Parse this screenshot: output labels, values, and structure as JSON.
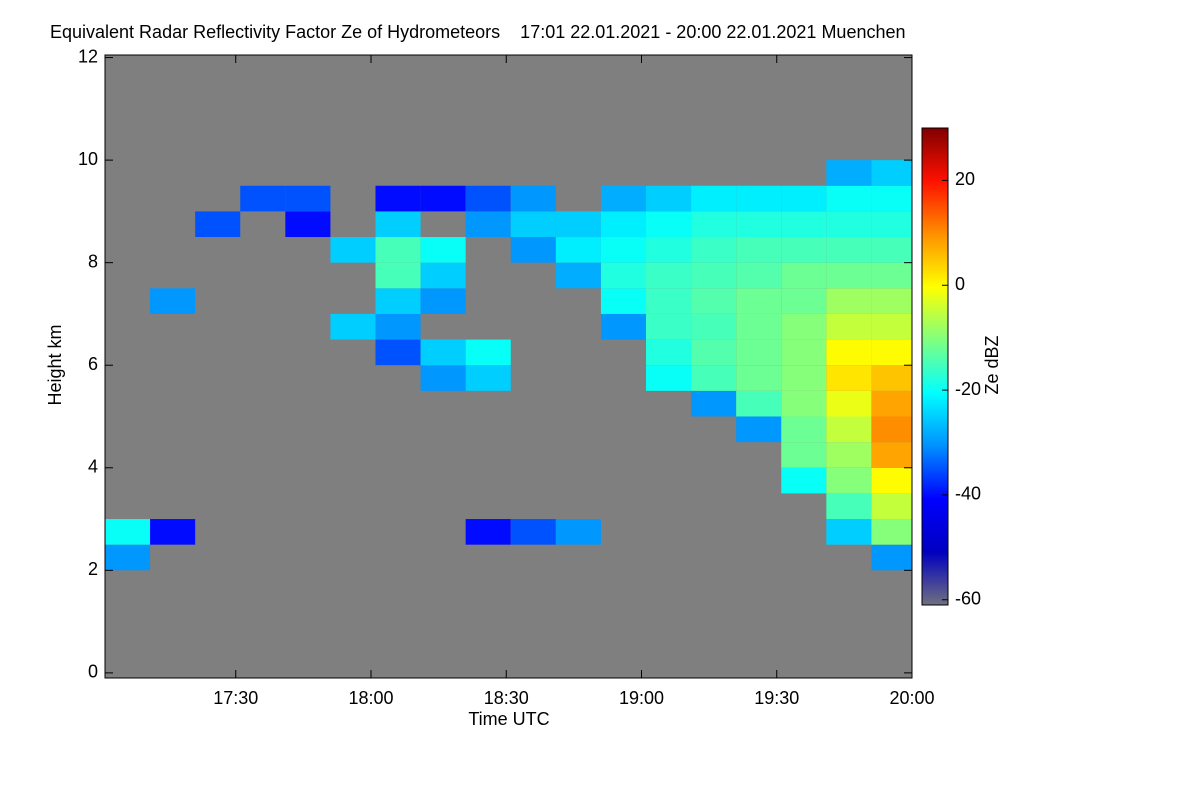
{
  "chart_data": {
    "type": "heatmap",
    "title": "Equivalent Radar Reflectivity Factor Ze of Hydrometeors    17:01 22.01.2021 - 20:00 22.01.2021 Muenchen",
    "x_label": "Time UTC",
    "y_label": "Height km",
    "colorbar_label": "Ze dBZ",
    "xlim": [
      1021,
      1200
    ],
    "xticks": [
      {
        "value": 1050,
        "label": "17:30"
      },
      {
        "value": 1080,
        "label": "18:00"
      },
      {
        "value": 1110,
        "label": "18:30"
      },
      {
        "value": 1140,
        "label": "19:00"
      },
      {
        "value": 1170,
        "label": "19:30"
      },
      {
        "value": 1200,
        "label": "20:00"
      }
    ],
    "ylim": [
      -0.1,
      12.05
    ],
    "yticks": [
      0,
      2,
      4,
      6,
      8,
      10,
      12
    ],
    "clim": [
      -61,
      30
    ],
    "cticks": [
      -60,
      -40,
      -20,
      0,
      20
    ],
    "background_color": "#7f7f7f",
    "colorscale": [
      "#707080",
      "#0000c0",
      "#0000ff",
      "#0090ff",
      "#00ffff",
      "#80ff80",
      "#ffff00",
      "#ff9000",
      "#ff1000",
      "#800000"
    ],
    "x": [
      1026,
      1036,
      1046,
      1056,
      1066,
      1076,
      1086,
      1096,
      1106,
      1116,
      1126,
      1136,
      1146,
      1156,
      1166,
      1176,
      1186,
      1196
    ],
    "y": [
      2.25,
      2.75,
      3.25,
      3.75,
      4.25,
      4.75,
      5.25,
      5.75,
      6.25,
      6.75,
      7.25,
      7.75,
      8.25,
      8.75,
      9.25,
      9.75
    ],
    "z": [
      [
        -30,
        null,
        null,
        null,
        null,
        null,
        null,
        null,
        null,
        null,
        null,
        null,
        null,
        null,
        null,
        null,
        null,
        -30
      ],
      [
        -20,
        -40,
        null,
        null,
        null,
        null,
        null,
        null,
        -40,
        -35,
        -30,
        null,
        null,
        null,
        null,
        null,
        -25,
        -10
      ],
      [
        null,
        null,
        null,
        null,
        null,
        null,
        null,
        null,
        null,
        null,
        null,
        null,
        null,
        null,
        null,
        null,
        -15,
        -5
      ],
      [
        null,
        null,
        null,
        null,
        null,
        null,
        null,
        null,
        null,
        null,
        null,
        null,
        null,
        null,
        null,
        -20,
        -10,
        0
      ],
      [
        null,
        null,
        null,
        null,
        null,
        null,
        null,
        null,
        null,
        null,
        null,
        null,
        null,
        null,
        null,
        -12,
        -8,
        8
      ],
      [
        null,
        null,
        null,
        null,
        null,
        null,
        null,
        null,
        null,
        null,
        null,
        null,
        null,
        null,
        -30,
        -12,
        -5,
        10
      ],
      [
        null,
        null,
        null,
        null,
        null,
        null,
        null,
        null,
        null,
        null,
        null,
        null,
        null,
        -30,
        -15,
        -10,
        -2,
        8
      ],
      [
        null,
        null,
        null,
        null,
        null,
        null,
        null,
        -30,
        -25,
        null,
        null,
        null,
        -20,
        -15,
        -12,
        -10,
        2,
        5
      ],
      [
        null,
        null,
        null,
        null,
        null,
        null,
        -35,
        -25,
        -20,
        null,
        null,
        null,
        -18,
        -14,
        -12,
        -10,
        0,
        0
      ],
      [
        null,
        null,
        null,
        null,
        null,
        -25,
        -30,
        null,
        null,
        null,
        null,
        -30,
        -16,
        -15,
        -12,
        -10,
        -5,
        -5
      ],
      [
        null,
        -30,
        null,
        null,
        null,
        null,
        -25,
        -30,
        null,
        null,
        null,
        -20,
        -16,
        -14,
        -12,
        -12,
        -8,
        -8
      ],
      [
        null,
        null,
        null,
        null,
        null,
        null,
        -15,
        -25,
        null,
        null,
        -28,
        -18,
        -16,
        -15,
        -14,
        -12,
        -12,
        -12
      ],
      [
        null,
        null,
        null,
        null,
        null,
        -25,
        -15,
        -20,
        null,
        -30,
        -22,
        -20,
        -18,
        -16,
        -15,
        -15,
        -15,
        -15
      ],
      [
        null,
        null,
        -35,
        null,
        -40,
        null,
        -25,
        null,
        -30,
        -25,
        -25,
        -22,
        -20,
        -18,
        -18,
        -18,
        -18,
        -18
      ],
      [
        null,
        null,
        null,
        -35,
        -35,
        null,
        -40,
        -40,
        -35,
        -30,
        null,
        -28,
        -25,
        -22,
        -22,
        -22,
        -20,
        -20
      ],
      [
        null,
        null,
        null,
        null,
        null,
        null,
        null,
        null,
        null,
        null,
        null,
        null,
        null,
        null,
        null,
        null,
        -28,
        -25
      ]
    ]
  }
}
